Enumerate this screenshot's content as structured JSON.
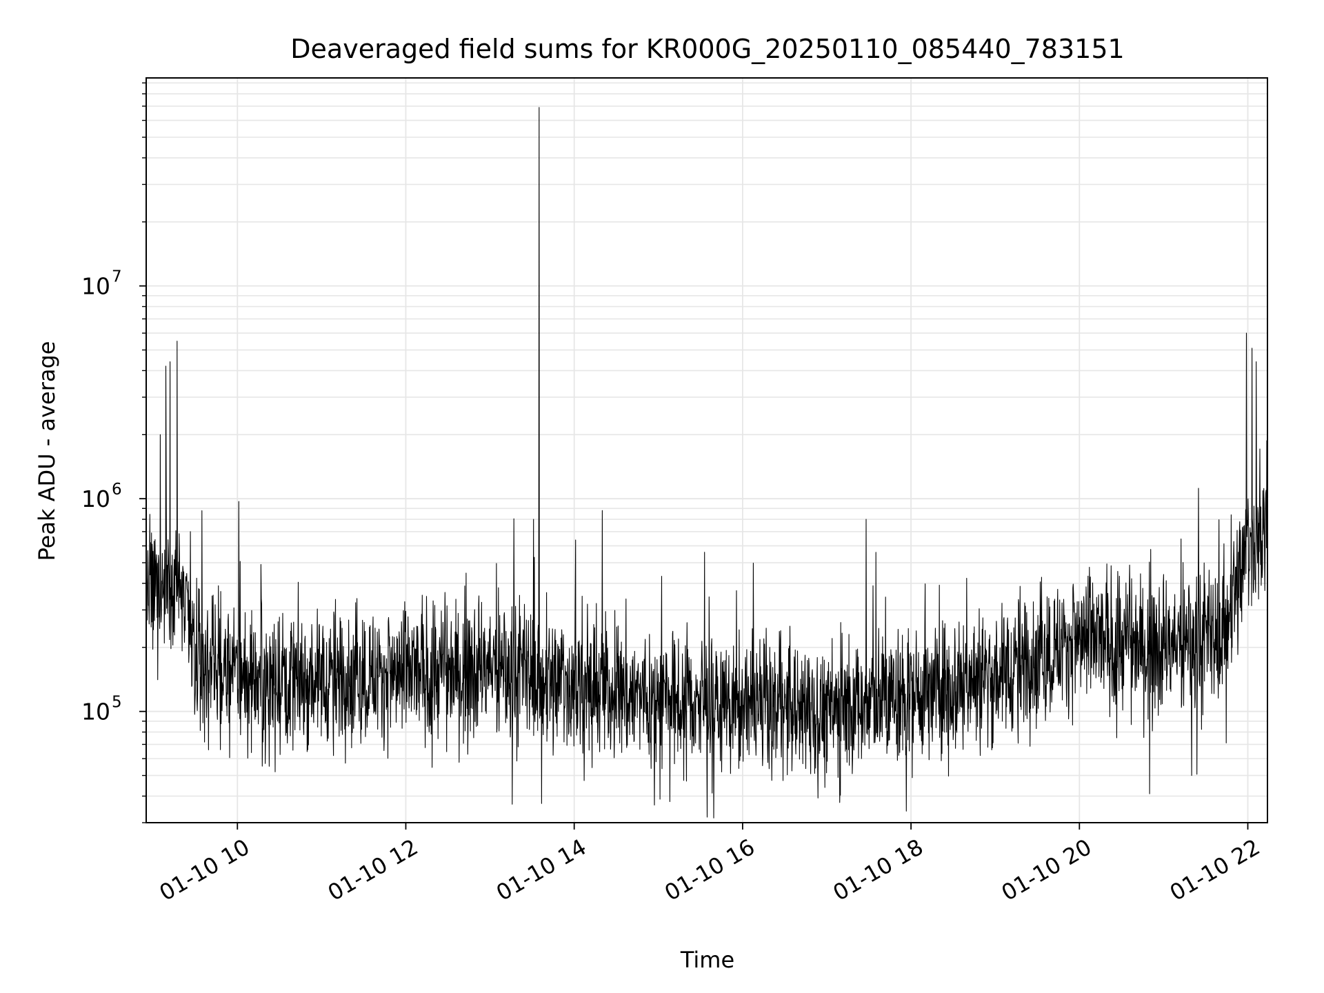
{
  "chart_data": {
    "type": "line",
    "title": "Deaveraged field sums for KR000G_20250110_085440_783151",
    "xlabel": "Time",
    "ylabel": "Peak ADU - average",
    "x_axis_type": "datetime",
    "xlim": [
      "2025-01-10T08:55",
      "2025-01-10T22:14"
    ],
    "x_ticks": [
      {
        "t": "2025-01-10T10:00",
        "label": "01-10 10"
      },
      {
        "t": "2025-01-10T12:00",
        "label": "01-10 12"
      },
      {
        "t": "2025-01-10T14:00",
        "label": "01-10 14"
      },
      {
        "t": "2025-01-10T16:00",
        "label": "01-10 16"
      },
      {
        "t": "2025-01-10T18:00",
        "label": "01-10 18"
      },
      {
        "t": "2025-01-10T20:00",
        "label": "01-10 20"
      },
      {
        "t": "2025-01-10T22:00",
        "label": "01-10 22"
      }
    ],
    "y_scale": "log",
    "ylim": [
      30000,
      95000000
    ],
    "y_ticks": [
      {
        "value": 100000,
        "base": "10",
        "exp": "5"
      },
      {
        "value": 1000000,
        "base": "10",
        "exp": "6"
      },
      {
        "value": 10000000,
        "base": "10",
        "exp": "7"
      }
    ],
    "grid": true,
    "legend": "none",
    "line_color": "#000000",
    "grid_color": "#e6e6e6",
    "baseline": [
      {
        "t": "2025-01-10T08:55",
        "value": 320000
      },
      {
        "t": "2025-01-10T09:10",
        "value": 420000
      },
      {
        "t": "2025-01-10T09:20",
        "value": 380000
      },
      {
        "t": "2025-01-10T09:30",
        "value": 170000
      },
      {
        "t": "2025-01-10T10:00",
        "value": 150000
      },
      {
        "t": "2025-01-10T11:00",
        "value": 145000
      },
      {
        "t": "2025-01-10T12:00",
        "value": 150000
      },
      {
        "t": "2025-01-10T13:00",
        "value": 160000
      },
      {
        "t": "2025-01-10T14:00",
        "value": 135000
      },
      {
        "t": "2025-01-10T15:00",
        "value": 115000
      },
      {
        "t": "2025-01-10T16:00",
        "value": 105000
      },
      {
        "t": "2025-01-10T17:00",
        "value": 100000
      },
      {
        "t": "2025-01-10T18:00",
        "value": 120000
      },
      {
        "t": "2025-01-10T19:00",
        "value": 150000
      },
      {
        "t": "2025-01-10T20:00",
        "value": 220000
      },
      {
        "t": "2025-01-10T21:00",
        "value": 200000
      },
      {
        "t": "2025-01-10T21:40",
        "value": 220000
      },
      {
        "t": "2025-01-10T22:00",
        "value": 600000
      },
      {
        "t": "2025-01-10T22:14",
        "value": 720000
      }
    ],
    "spikes": [
      {
        "t": "2025-01-10T09:05",
        "value": 2000000
      },
      {
        "t": "2025-01-10T09:09",
        "value": 4200000
      },
      {
        "t": "2025-01-10T09:12",
        "value": 4400000
      },
      {
        "t": "2025-01-10T09:17",
        "value": 5500000
      },
      {
        "t": "2025-01-10T10:01",
        "value": 970000
      },
      {
        "t": "2025-01-10T13:31",
        "value": 800000
      },
      {
        "t": "2025-01-10T13:35",
        "value": 69000000
      },
      {
        "t": "2025-01-10T14:01",
        "value": 640000
      },
      {
        "t": "2025-01-10T14:20",
        "value": 880000
      },
      {
        "t": "2025-01-10T17:28",
        "value": 800000
      },
      {
        "t": "2025-01-10T17:35",
        "value": 560000
      },
      {
        "t": "2025-01-10T21:59",
        "value": 6000000
      },
      {
        "t": "2025-01-10T22:03",
        "value": 5100000
      },
      {
        "t": "2025-01-10T22:06",
        "value": 4400000
      }
    ],
    "dips": [
      {
        "t": "2025-01-10T15:20",
        "value": 47000
      },
      {
        "t": "2025-01-10T20:50",
        "value": 41000
      },
      {
        "t": "2025-01-10T21:20",
        "value": 50000
      }
    ]
  }
}
